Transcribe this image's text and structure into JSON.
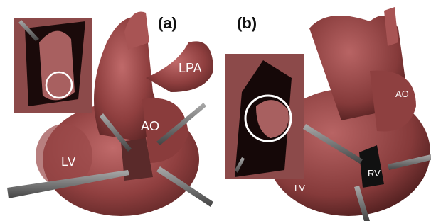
{
  "panels": [
    {
      "label": "(a)",
      "annotations": [
        "LPA",
        "AO",
        "LV"
      ]
    },
    {
      "label": "(b)",
      "annotations": [
        "AO",
        "LV",
        "RV"
      ]
    }
  ]
}
